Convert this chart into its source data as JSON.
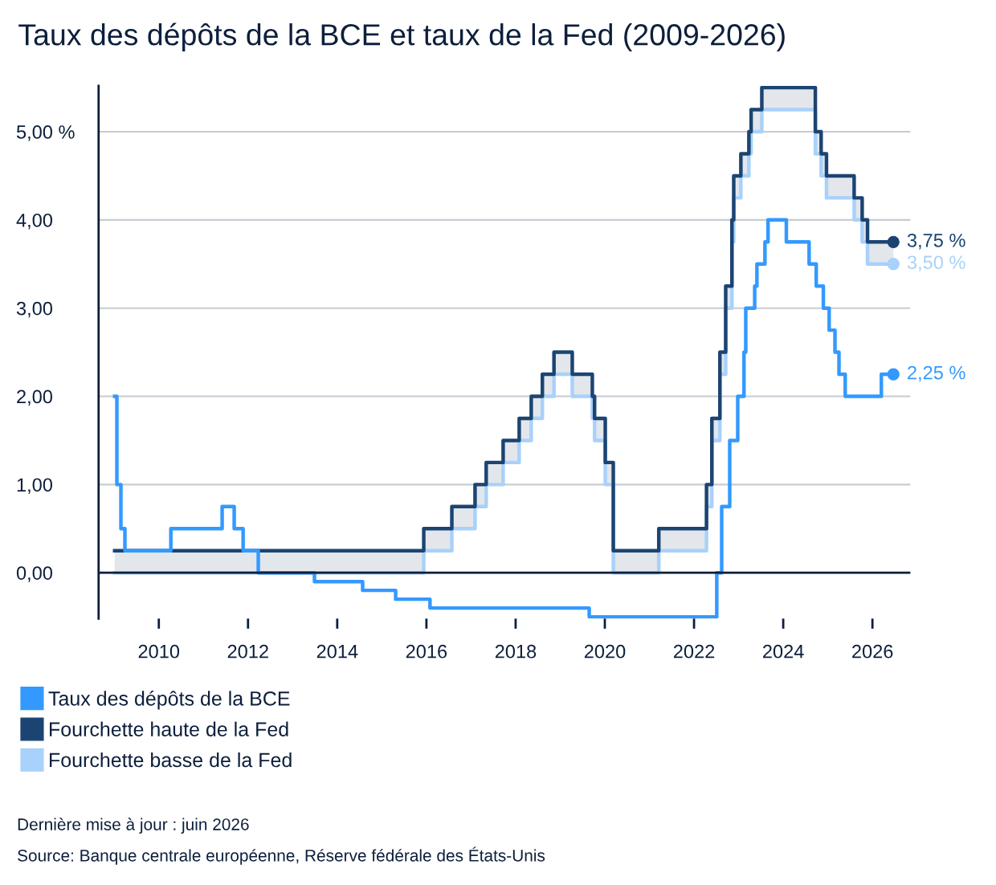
{
  "chart_data": {
    "type": "step",
    "title": "Taux des dépôts de la BCE et taux de la Fed (2009-2026)",
    "series": [
      {
        "name": "Taux des dépôts de la BCE",
        "color": "#3399ff",
        "x": [
          2009.01,
          2009.06,
          2009.15,
          2009.24,
          2010.27,
          2011.42,
          2011.69,
          2011.89,
          2012.23,
          2013.49,
          2014.57,
          2015.31,
          2016.08,
          2019.65,
          2022.51,
          2022.62,
          2022.8,
          2022.98,
          2023.12,
          2023.16,
          2023.36,
          2023.41,
          2023.59,
          2023.66,
          2024.07,
          2024.58,
          2024.74,
          2024.9,
          2025.03,
          2025.16,
          2025.25,
          2025.39,
          2026.2,
          2026.47
        ],
        "values": [
          2.0,
          1.0,
          0.5,
          0.25,
          0.5,
          0.75,
          0.5,
          0.25,
          0,
          -0.1,
          -0.2,
          -0.3,
          -0.4,
          -0.5,
          0,
          0.75,
          1.5,
          2.0,
          2.5,
          3.0,
          3.25,
          3.5,
          3.75,
          4.0,
          3.75,
          3.5,
          3.25,
          3.0,
          2.75,
          2.5,
          2.25,
          2.0,
          2.25,
          2.25
        ],
        "value_labels": [
          null,
          null,
          null,
          null,
          null,
          null,
          null,
          null,
          null,
          null,
          null,
          null,
          null,
          null,
          null,
          null,
          null,
          null,
          null,
          null,
          null,
          null,
          null,
          null,
          null,
          null,
          null,
          null,
          null,
          null,
          null,
          null,
          null,
          "2,25 %"
        ]
      },
      {
        "name": "Fourchette haute de la Fed",
        "color": "#1b4472",
        "x": [
          2009.01,
          2015.94,
          2016.57,
          2017.09,
          2017.34,
          2017.72,
          2018.08,
          2018.35,
          2018.6,
          2018.86,
          2019.27,
          2019.72,
          2019.77,
          2020.01,
          2020.19,
          2021.21,
          2022.28,
          2022.4,
          2022.58,
          2022.71,
          2022.85,
          2022.89,
          2023.05,
          2023.23,
          2023.28,
          2023.52,
          2024.72,
          2024.85,
          2024.97,
          2025.59,
          2025.77,
          2025.89,
          2026.47
        ],
        "values": [
          0.25,
          0.5,
          0.75,
          1.0,
          1.25,
          1.5,
          1.75,
          2.0,
          2.25,
          2.5,
          2.25,
          2.0,
          1.75,
          1.25,
          0.25,
          0.5,
          1.0,
          1.75,
          2.5,
          3.25,
          4.0,
          4.5,
          4.75,
          5.0,
          5.25,
          5.5,
          5.0,
          4.75,
          4.5,
          4.25,
          4.0,
          3.75,
          3.75
        ],
        "lower": [
          0,
          0.25,
          0.5,
          0.75,
          1.0,
          1.25,
          1.5,
          1.75,
          2.0,
          2.25,
          2.0,
          1.75,
          1.5,
          1.0,
          0,
          0.25,
          0.75,
          1.5,
          2.25,
          3.0,
          3.75,
          4.25,
          4.5,
          4.75,
          5.0,
          5.25,
          4.75,
          4.5,
          4.25,
          4.0,
          3.75,
          3.5,
          3.5
        ],
        "upper": [
          0.25,
          0.5,
          0.75,
          1.0,
          1.25,
          1.5,
          1.75,
          2.0,
          2.25,
          2.5,
          2.25,
          2.0,
          1.75,
          1.25,
          0.25,
          0.5,
          1.0,
          1.75,
          2.5,
          3.25,
          4.0,
          4.5,
          4.75,
          5.0,
          5.25,
          5.5,
          5.0,
          4.75,
          4.5,
          4.25,
          4.0,
          3.75,
          3.75
        ],
        "value_labels": [
          null,
          null,
          null,
          null,
          null,
          null,
          null,
          null,
          null,
          null,
          null,
          null,
          null,
          null,
          null,
          null,
          null,
          null,
          null,
          null,
          null,
          null,
          null,
          null,
          null,
          null,
          null,
          null,
          null,
          null,
          null,
          null,
          "3,75 %"
        ]
      },
      {
        "name": "Fourchette basse de la Fed",
        "color": "#a8d1fb",
        "x": [
          2009.01,
          2015.94,
          2016.57,
          2017.09,
          2017.34,
          2017.72,
          2018.08,
          2018.35,
          2018.6,
          2018.86,
          2019.27,
          2019.72,
          2019.77,
          2020.01,
          2020.19,
          2021.21,
          2022.28,
          2022.4,
          2022.58,
          2022.71,
          2022.85,
          2022.89,
          2023.05,
          2023.23,
          2023.28,
          2023.52,
          2024.72,
          2024.85,
          2024.97,
          2025.59,
          2025.77,
          2025.89,
          2026.47
        ],
        "values": [
          0,
          0.25,
          0.5,
          0.75,
          1.0,
          1.25,
          1.5,
          1.75,
          2.0,
          2.25,
          2.0,
          1.75,
          1.5,
          1.0,
          0,
          0.25,
          0.75,
          1.5,
          2.25,
          3.0,
          3.75,
          4.25,
          4.5,
          4.75,
          5.0,
          5.25,
          4.75,
          4.5,
          4.25,
          4.0,
          3.75,
          3.5,
          3.5
        ],
        "value_labels": [
          null,
          null,
          null,
          null,
          null,
          null,
          null,
          null,
          null,
          null,
          null,
          null,
          null,
          null,
          null,
          null,
          null,
          null,
          null,
          null,
          null,
          null,
          null,
          null,
          null,
          null,
          null,
          null,
          null,
          null,
          null,
          null,
          "3,50 %"
        ]
      }
    ],
    "xlim": [
      2008.65,
      2026.85
    ],
    "xticks": [
      2010,
      2012,
      2014,
      2016,
      2018,
      2020,
      2022,
      2024,
      2026
    ],
    "ylim": [
      -0.52,
      5.52
    ],
    "yticks": [
      {
        "value": 0,
        "label": "0,00"
      },
      {
        "value": 1,
        "label": "1,00"
      },
      {
        "value": 2,
        "label": "2,00"
      },
      {
        "value": 3,
        "label": "3,00"
      },
      {
        "value": 4,
        "label": "4,00"
      },
      {
        "value": 5,
        "label": "5,00 %"
      }
    ],
    "ref_lines": [
      {
        "axis": "y",
        "value": 0,
        "label": null,
        "color": "#0d1f3c"
      }
    ],
    "grid": "y",
    "legend": "bottom",
    "line_style": "solid",
    "annotations": [
      "Dernière mise à jour : juin 2026",
      "Source: Banque centrale européenne, Réserve fédérale des États-Unis"
    ]
  }
}
